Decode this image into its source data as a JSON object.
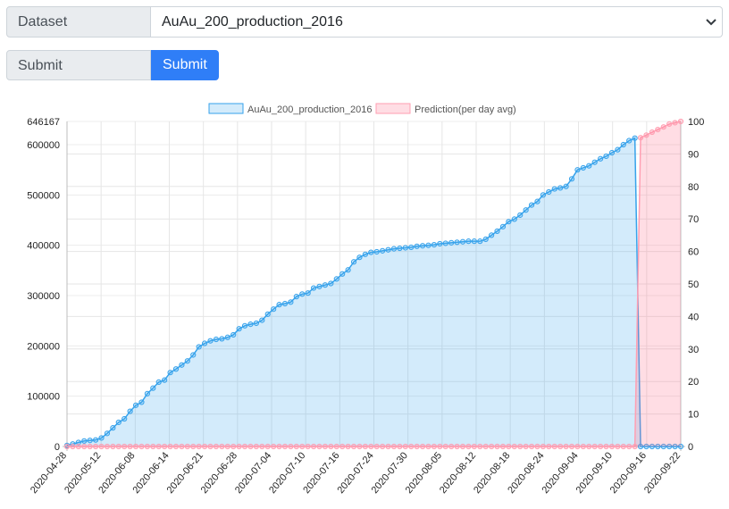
{
  "form": {
    "dataset_label": "Dataset",
    "dataset_value": "AuAu_200_production_2016",
    "submit_label": "Submit",
    "submit_button": "Submit"
  },
  "chart_data": {
    "type": "line",
    "legend_position": "top",
    "grid": true,
    "x_ticks": [
      "2020-04-28",
      "2020-05-12",
      "2020-06-08",
      "2020-06-14",
      "2020-06-21",
      "2020-06-28",
      "2020-07-04",
      "2020-07-10",
      "2020-07-16",
      "2020-07-24",
      "2020-07-30",
      "2020-08-05",
      "2020-08-12",
      "2020-08-18",
      "2020-08-24",
      "2020-09-04",
      "2020-09-10",
      "2020-09-16",
      "2020-09-22"
    ],
    "y_left": {
      "ticks": [
        0,
        100000,
        200000,
        300000,
        400000,
        500000,
        600000,
        646167
      ],
      "max": 646167
    },
    "y_right": {
      "ticks": [
        0,
        10,
        20,
        30,
        40,
        50,
        60,
        70,
        80,
        90,
        100
      ],
      "max": 100
    },
    "series": [
      {
        "name": "AuAu_200_production_2016",
        "axis": "left",
        "color": "#36a2eb",
        "fill": "rgba(54,162,235,0.22)",
        "values": [
          2000,
          5000,
          8000,
          11000,
          12000,
          13000,
          17000,
          26000,
          37000,
          48000,
          55000,
          70000,
          82000,
          88000,
          105000,
          116000,
          128000,
          132000,
          147000,
          154000,
          162000,
          170000,
          182000,
          198000,
          205000,
          210000,
          213000,
          214000,
          217000,
          222000,
          234000,
          240000,
          243000,
          245000,
          251000,
          263000,
          273000,
          282000,
          284000,
          287000,
          298000,
          303000,
          305000,
          315000,
          318000,
          321000,
          324000,
          333000,
          343000,
          351000,
          367000,
          376000,
          382000,
          386000,
          387000,
          389000,
          391000,
          393000,
          394000,
          395000,
          396000,
          398000,
          399000,
          400000,
          401000,
          403000,
          404000,
          405000,
          406000,
          407000,
          408000,
          408000,
          408000,
          412000,
          420000,
          428000,
          437000,
          447000,
          452000,
          460000,
          470000,
          480000,
          487000,
          500000,
          506000,
          512000,
          514000,
          517000,
          532000,
          550000,
          554000,
          558000,
          565000,
          572000,
          577000,
          584000,
          590000,
          600000,
          608000,
          613000,
          0,
          0,
          0,
          0,
          0,
          0,
          0,
          0
        ]
      },
      {
        "name": "Prediction(per day avg)",
        "axis": "right",
        "color": "#ff9fb2",
        "fill": "rgba(255,99,132,0.22)",
        "values": [
          0,
          0,
          0,
          0,
          0,
          0,
          0,
          0,
          0,
          0,
          0,
          0,
          0,
          0,
          0,
          0,
          0,
          0,
          0,
          0,
          0,
          0,
          0,
          0,
          0,
          0,
          0,
          0,
          0,
          0,
          0,
          0,
          0,
          0,
          0,
          0,
          0,
          0,
          0,
          0,
          0,
          0,
          0,
          0,
          0,
          0,
          0,
          0,
          0,
          0,
          0,
          0,
          0,
          0,
          0,
          0,
          0,
          0,
          0,
          0,
          0,
          0,
          0,
          0,
          0,
          0,
          0,
          0,
          0,
          0,
          0,
          0,
          0,
          0,
          0,
          0,
          0,
          0,
          0,
          0,
          0,
          0,
          0,
          0,
          0,
          0,
          0,
          0,
          0,
          0,
          0,
          0,
          0,
          0,
          0,
          0,
          0,
          0,
          0,
          0,
          95,
          95.8,
          96.7,
          97.5,
          98.3,
          99.2,
          99.6,
          100
        ]
      }
    ]
  }
}
